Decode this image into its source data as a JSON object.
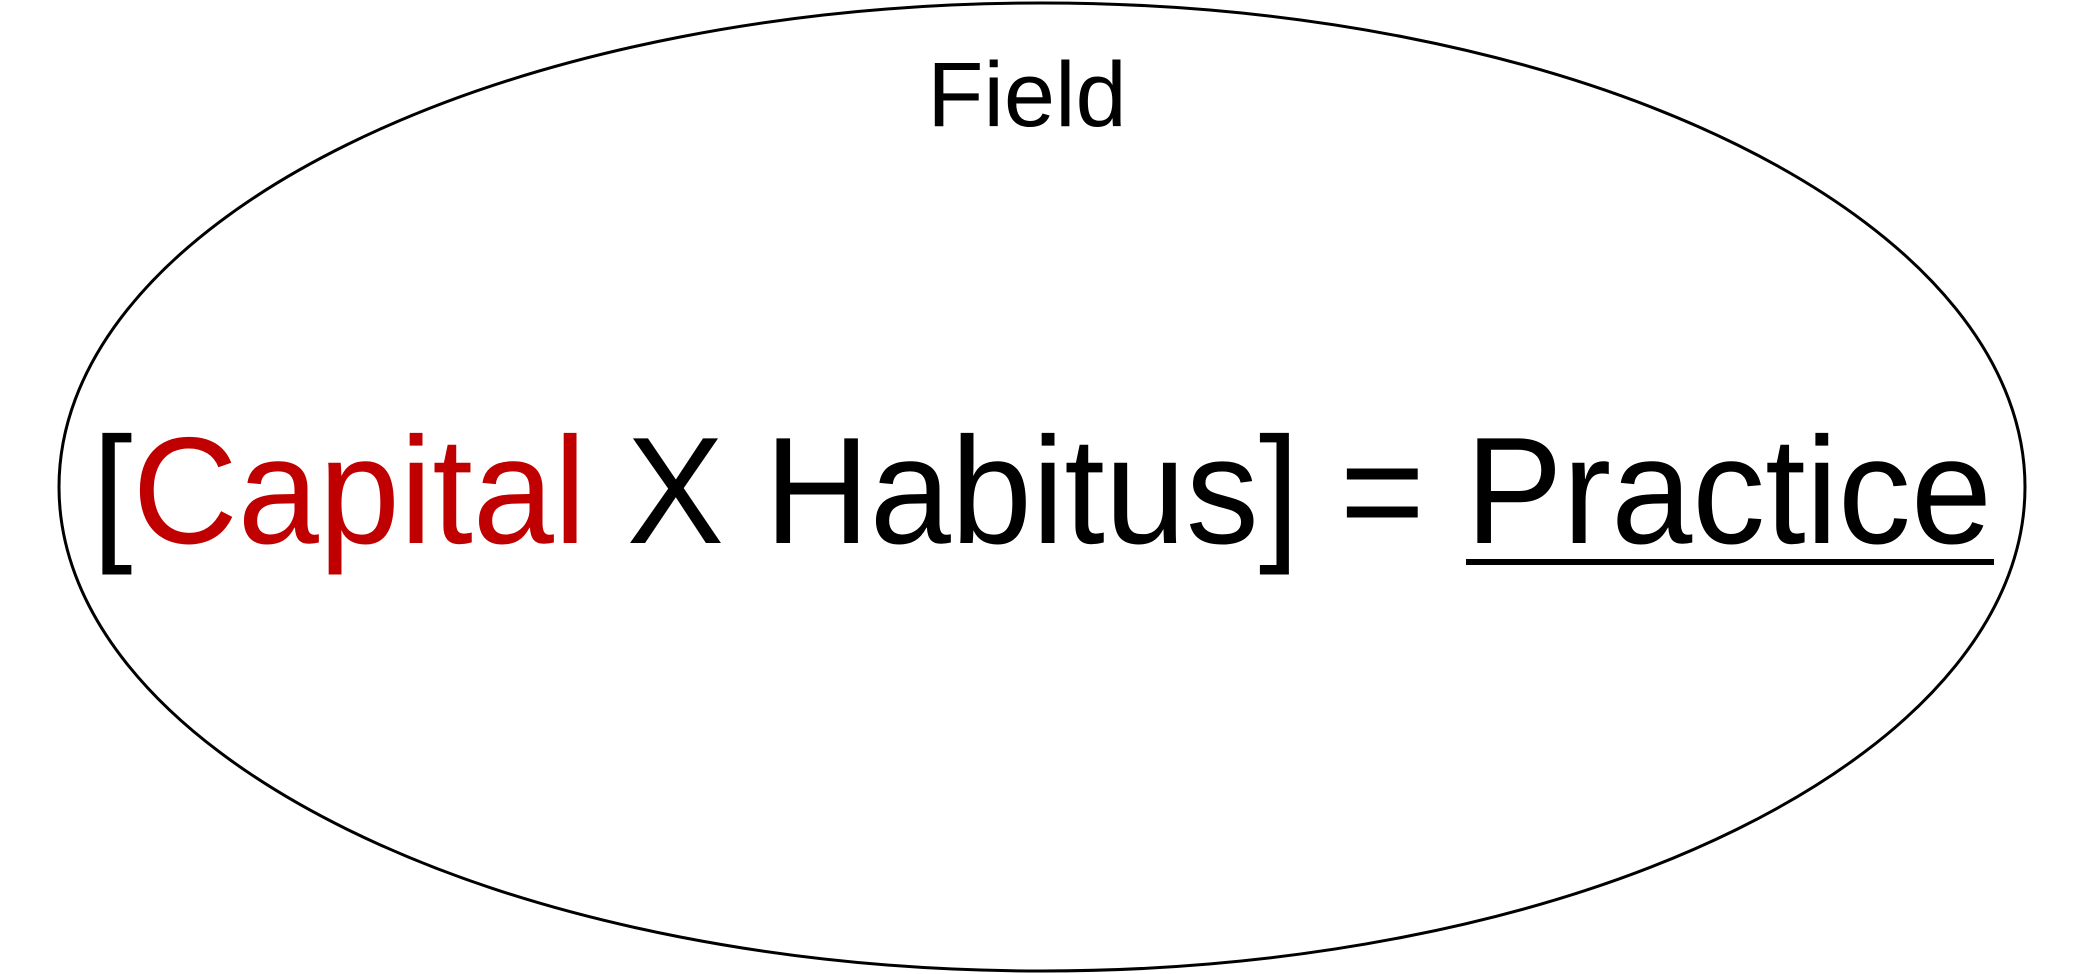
{
  "field": {
    "label": "Field"
  },
  "formula": {
    "open_bracket": "[",
    "capital": "Capital",
    "times": " X ",
    "habitus": "Habitus",
    "close_bracket": "]",
    "equals": " = ",
    "practice": "Practice"
  },
  "colors": {
    "text": "#000000",
    "capital": "#c00000",
    "outline": "#000000",
    "background": "#ffffff"
  }
}
